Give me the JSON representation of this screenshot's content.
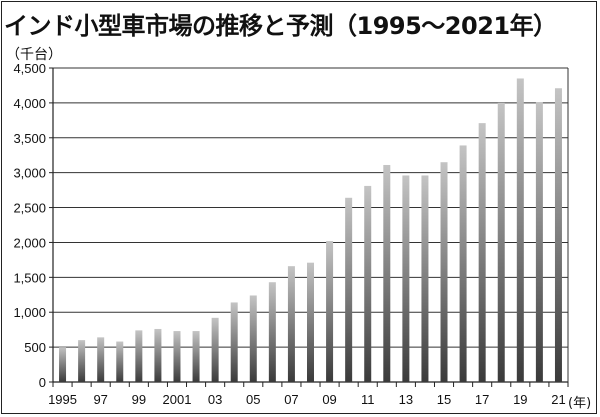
{
  "title": "インド小型車市場の推移と予測（1995〜2021年）",
  "unit_label": "（千台）",
  "x_unit_label": "(年)",
  "chart_data": {
    "type": "bar",
    "x": [
      1995,
      1996,
      1997,
      1998,
      1999,
      2000,
      2001,
      2002,
      2003,
      2004,
      2005,
      2006,
      2007,
      2008,
      2009,
      2010,
      2011,
      2012,
      2013,
      2014,
      2015,
      2016,
      2017,
      2018,
      2019,
      2020,
      2021
    ],
    "values": [
      500,
      600,
      640,
      580,
      740,
      760,
      730,
      730,
      920,
      1140,
      1240,
      1430,
      1660,
      1710,
      2020,
      2640,
      2810,
      3110,
      2960,
      2960,
      3150,
      3390,
      3710,
      4000,
      4350,
      4010,
      4210
    ],
    "ylim": [
      0,
      4500
    ],
    "yticks": [
      0,
      500,
      1000,
      1500,
      2000,
      2500,
      3000,
      3500,
      4000,
      4500
    ],
    "ytick_labels": [
      "0",
      "500",
      "1,000",
      "1,500",
      "2,000",
      "2,500",
      "3,000",
      "3,500",
      "4,000",
      "4,500"
    ],
    "xtick_labels": [
      "1995",
      "",
      "97",
      "",
      "99",
      "",
      "2001",
      "",
      "03",
      "",
      "05",
      "",
      "07",
      "",
      "09",
      "",
      "11",
      "",
      "13",
      "",
      "15",
      "",
      "17",
      "",
      "19",
      "",
      "21"
    ],
    "grid": true,
    "bar_color_top": "#c4c4c4",
    "bar_color_bottom": "#3a3a3a"
  }
}
